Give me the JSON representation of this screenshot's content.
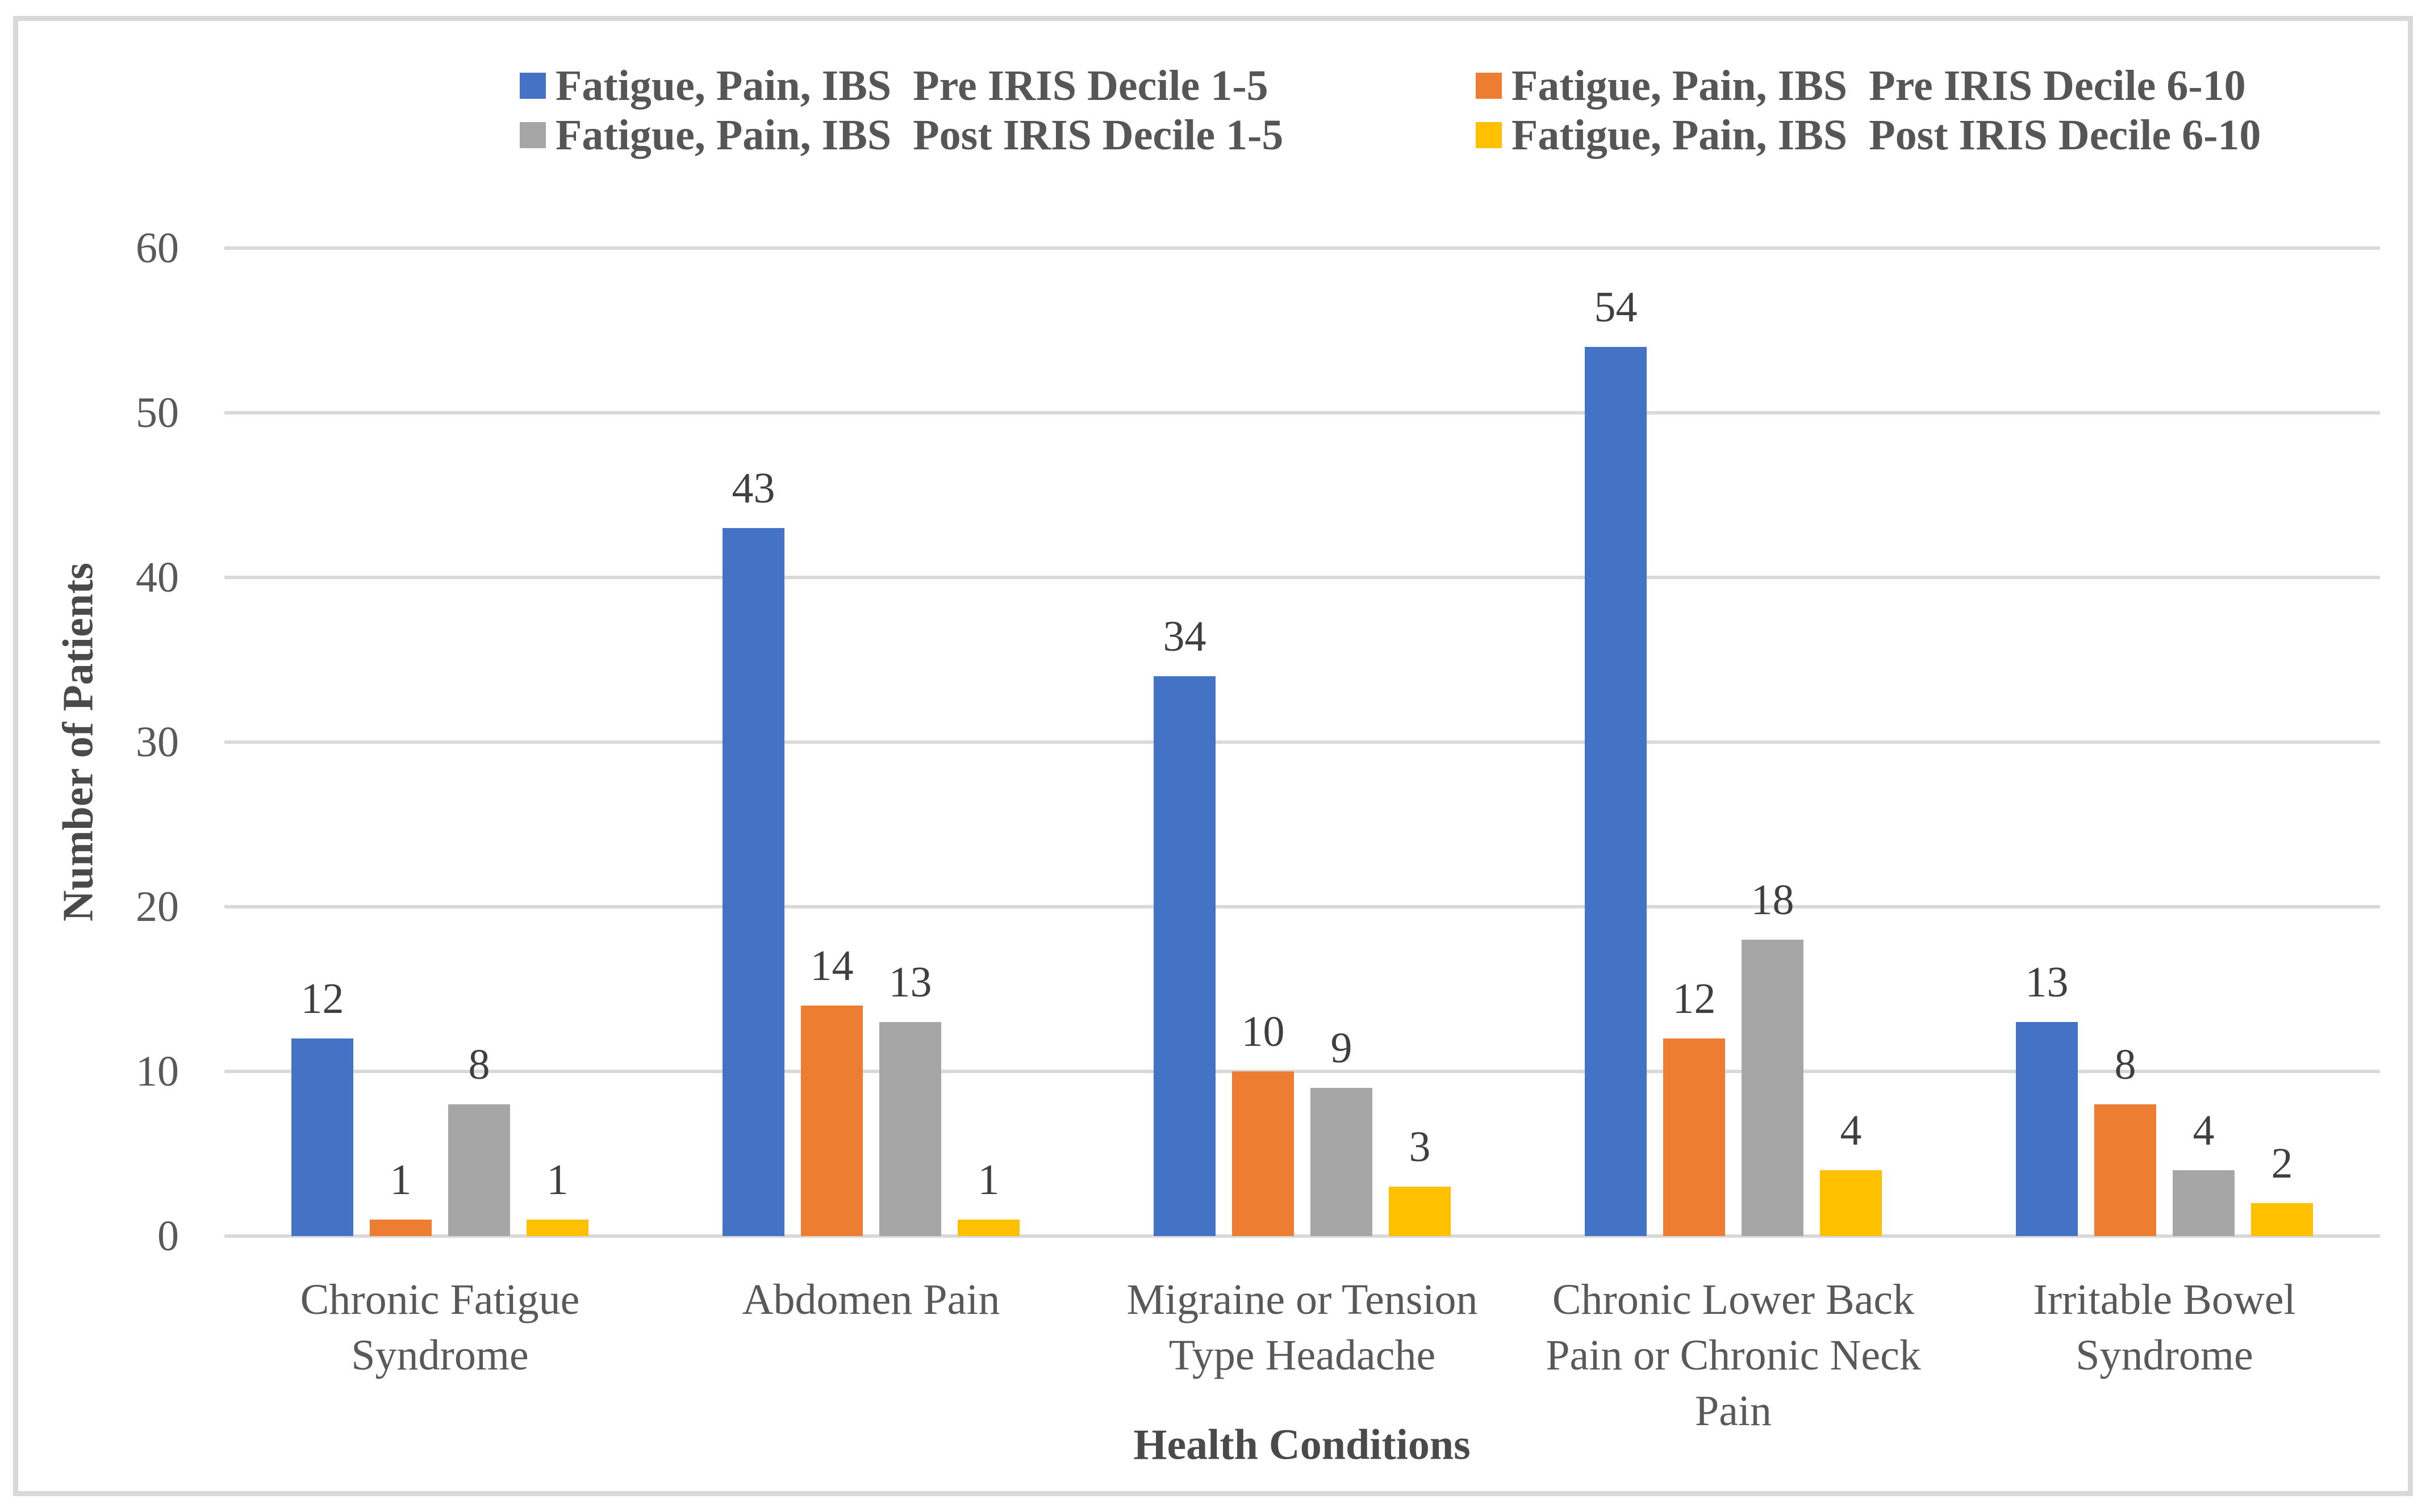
{
  "chart_data": {
    "type": "bar",
    "title": "",
    "categories": [
      "Chronic Fatigue Syndrome",
      "Abdomen Pain",
      "Migraine or Tension Type Headache",
      "Chronic Lower Back Pain or Chronic Neck Pain",
      "Irritable Bowel Syndrome"
    ],
    "series": [
      {
        "name": "Fatigue, Pain, IBS  Pre IRIS Decile 1-5",
        "color": "#4472C4",
        "values": [
          12,
          43,
          34,
          54,
          13
        ]
      },
      {
        "name": "Fatigue, Pain, IBS  Pre IRIS Decile 6-10",
        "color": "#ED7D31",
        "values": [
          1,
          14,
          10,
          12,
          8
        ]
      },
      {
        "name": "Fatigue, Pain, IBS  Post IRIS Decile 1-5",
        "color": "#A6A6A6",
        "values": [
          8,
          13,
          9,
          18,
          4
        ]
      },
      {
        "name": "Fatigue, Pain, IBS  Post IRIS Decile 6-10",
        "color": "#FFC000",
        "values": [
          1,
          1,
          3,
          4,
          2
        ]
      }
    ],
    "xlabel": "Health Conditions",
    "ylabel": "Number of Patients",
    "ylim": [
      0,
      60
    ],
    "yticks": [
      0,
      10,
      20,
      30,
      40,
      50,
      60
    ],
    "grid": true,
    "data_labels": true,
    "legend_position": "top"
  },
  "colors": {
    "background": "#FFFFFF",
    "frame_border": "#D9D9D9",
    "gridline": "#D9D9D9",
    "axis_text": "#595959",
    "data_label_text": "#3F3F3F"
  }
}
